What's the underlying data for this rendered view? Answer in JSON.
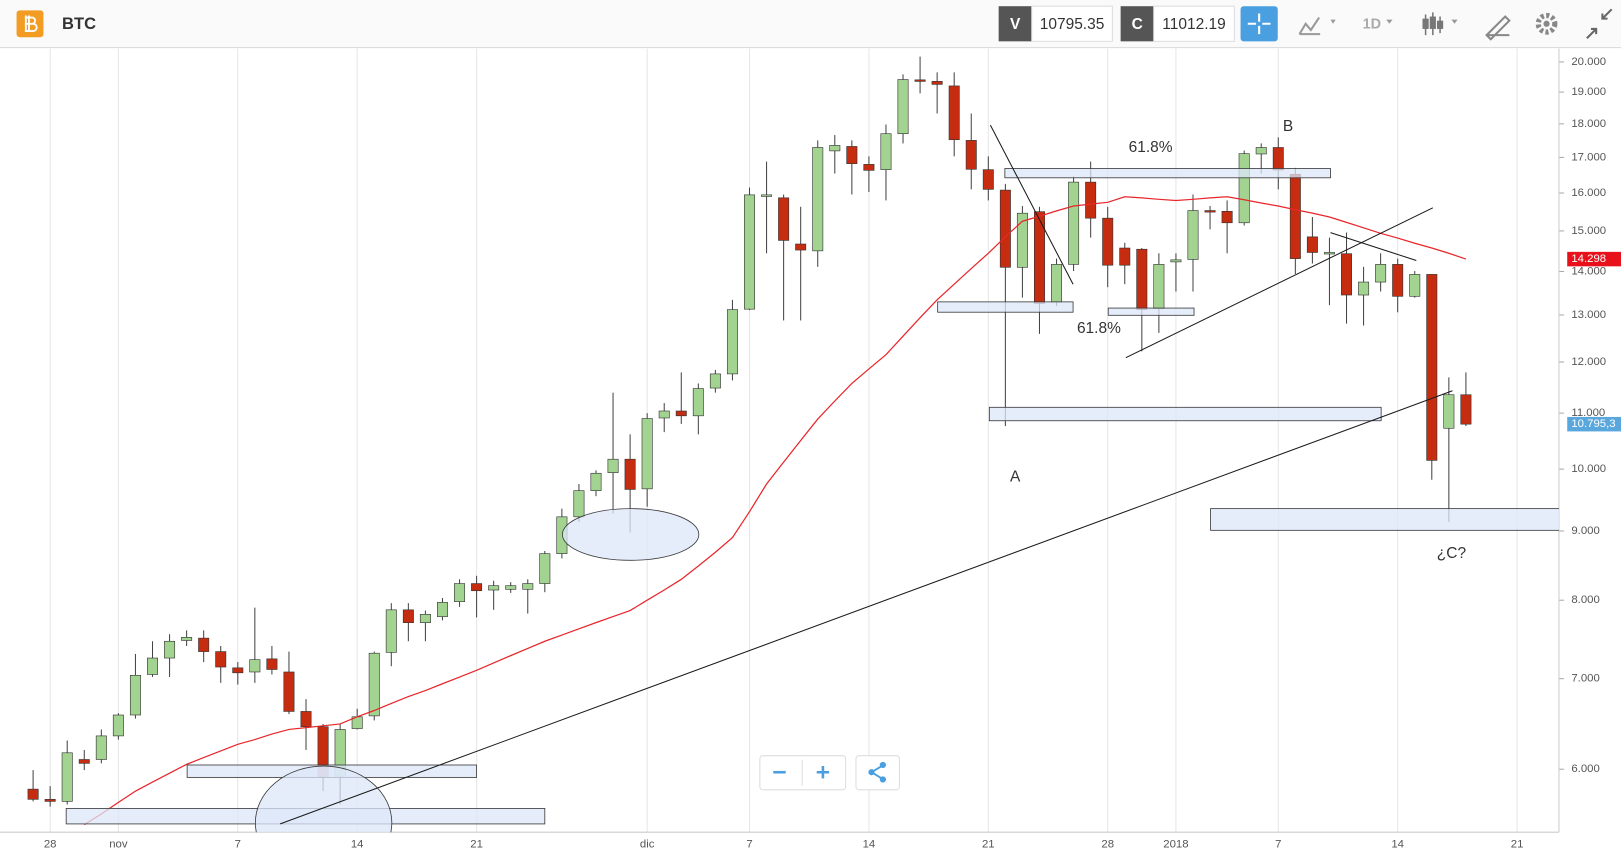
{
  "header": {
    "symbol": "BTC",
    "v_label": "V",
    "v_value": "10795.35",
    "c_label": "C",
    "c_value": "11012.19",
    "interval": "1D"
  },
  "chart_data": {
    "type": "candlestick",
    "categories": [
      null,
      "28",
      null,
      null,
      null,
      "nov",
      null,
      null,
      null,
      null,
      null,
      null,
      "7",
      null,
      null,
      null,
      null,
      null,
      null,
      "14",
      null,
      null,
      null,
      null,
      null,
      null,
      "21",
      null,
      null,
      null,
      null,
      null,
      null,
      null,
      null,
      null,
      "dic",
      null,
      null,
      null,
      null,
      null,
      "7",
      null,
      null,
      null,
      null,
      null,
      null,
      "14",
      null,
      null,
      null,
      null,
      null,
      null,
      "21",
      null,
      null,
      null,
      null,
      null,
      null,
      "28",
      null,
      null,
      null,
      "2018",
      null,
      null,
      null,
      null,
      null,
      "7",
      null,
      null,
      null,
      null,
      null,
      null,
      "14",
      null,
      null,
      null,
      null,
      null,
      null,
      "21"
    ],
    "open": [
      5800,
      5700,
      5680,
      6100,
      6100,
      6350,
      6580,
      7050,
      7250,
      7470,
      7500,
      7330,
      7130,
      7080,
      7240,
      7080,
      6620,
      6450,
      5930,
      6430,
      6570,
      7320,
      7870,
      7700,
      7780,
      7980,
      8230,
      8140,
      8150,
      8150,
      8230,
      8660,
      9220,
      9640,
      9940,
      10170,
      9670,
      10910,
      11040,
      10950,
      11480,
      11760,
      13130,
      15920,
      15870,
      14670,
      14500,
      17190,
      17320,
      16800,
      16650,
      17700,
      19400,
      19350,
      19200,
      17500,
      16650,
      16080,
      14100,
      15500,
      13290,
      14170,
      16300,
      15330,
      14570,
      14540,
      13140,
      14230,
      14290,
      15530,
      15510,
      15210,
      17100,
      17290,
      16520,
      14850,
      14430,
      14430,
      13450,
      13750,
      14170,
      13420,
      13930,
      10720,
      11350,
      null,
      null,
      null
    ],
    "high": [
      5990,
      5830,
      6300,
      6200,
      6420,
      6600,
      7300,
      7460,
      7550,
      7600,
      7600,
      7400,
      7200,
      7900,
      7400,
      7330,
      6760,
      6480,
      6480,
      6650,
      7330,
      7960,
      7960,
      7860,
      8030,
      8290,
      8340,
      8270,
      8250,
      8290,
      8700,
      9350,
      9750,
      9980,
      11390,
      10610,
      11000,
      11190,
      11790,
      11570,
      11840,
      13340,
      16150,
      16880,
      15960,
      15630,
      17500,
      17660,
      17500,
      17030,
      17980,
      19580,
      20180,
      19650,
      19650,
      18320,
      17030,
      16250,
      15650,
      15630,
      14310,
      16460,
      16880,
      15630,
      14700,
      14570,
      14440,
      14440,
      15960,
      15650,
      15800,
      17200,
      17410,
      17590,
      16700,
      15360,
      14830,
      14960,
      14110,
      14440,
      14310,
      14010,
      13940,
      11690,
      11790,
      null,
      null,
      null
    ],
    "low": [
      5680,
      5630,
      5650,
      5990,
      6060,
      6310,
      6540,
      7020,
      7020,
      7400,
      7200,
      6950,
      6930,
      6950,
      7050,
      6590,
      6200,
      5780,
      5650,
      6420,
      6520,
      7150,
      7460,
      7460,
      7730,
      7910,
      7770,
      7870,
      8100,
      7820,
      8110,
      8590,
      9140,
      9550,
      9270,
      8980,
      9380,
      10650,
      10800,
      10610,
      11390,
      11630,
      13110,
      14440,
      12880,
      12880,
      14110,
      16540,
      15960,
      16030,
      15800,
      17410,
      18960,
      18320,
      17030,
      16100,
      15800,
      10760,
      13390,
      12590,
      13200,
      14010,
      14830,
      13630,
      13700,
      12220,
      12610,
      13530,
      13530,
      15040,
      14440,
      15140,
      16540,
      16100,
      13940,
      14190,
      13220,
      12810,
      12770,
      13530,
      13060,
      13390,
      9820,
      9140,
      10760,
      null,
      null,
      null
    ],
    "close": [
      5700,
      5680,
      6170,
      6060,
      6350,
      6580,
      7040,
      7250,
      7460,
      7510,
      7330,
      7140,
      7070,
      7230,
      7110,
      6620,
      6450,
      5920,
      6420,
      6560,
      7310,
      7870,
      7700,
      7810,
      7970,
      8230,
      8130,
      8200,
      8200,
      8230,
      8660,
      9220,
      9640,
      9930,
      10170,
      9660,
      10900,
      11040,
      10950,
      11470,
      11760,
      13120,
      15950,
      15950,
      14760,
      14520,
      17290,
      17350,
      16820,
      16630,
      17700,
      19410,
      19370,
      19250,
      17520,
      16660,
      16100,
      14100,
      15460,
      13260,
      14170,
      16300,
      15330,
      14150,
      14150,
      13120,
      14170,
      14280,
      15530,
      15500,
      15210,
      17110,
      17290,
      16640,
      14310,
      14460,
      14460,
      13450,
      13750,
      14170,
      13420,
      13930,
      10150,
      11350,
      10795.35,
      null,
      null,
      null
    ],
    "up_color": "#a3d391",
    "down_color": "#c62d10",
    "moving_average": {
      "color": "#e8262a",
      "values": [
        null,
        null,
        null,
        5460,
        5560,
        5670,
        5780,
        5870,
        5960,
        6050,
        6120,
        6190,
        6260,
        6310,
        6370,
        6420,
        6440,
        6460,
        6480,
        6560,
        6630,
        6710,
        6790,
        6860,
        6940,
        7020,
        7100,
        7190,
        7280,
        7370,
        7460,
        7540,
        7620,
        7700,
        7780,
        7860,
        8000,
        8140,
        8290,
        8480,
        8680,
        8900,
        9300,
        9750,
        10120,
        10500,
        10890,
        11230,
        11570,
        11860,
        12150,
        12540,
        12940,
        13340,
        13700,
        14070,
        14440,
        14850,
        15250,
        15380,
        15520,
        15650,
        15700,
        15750,
        15900,
        15870,
        15830,
        15800,
        15830,
        15870,
        15900,
        15820,
        15730,
        15650,
        15550,
        15460,
        15360,
        15220,
        15080,
        14940,
        14820,
        14690,
        14570,
        14440,
        14298,
        null,
        null,
        null
      ]
    },
    "log_scale": true,
    "ylim": [
      5390,
      20460
    ],
    "yticks": [
      {
        "value": 6000,
        "label": "6.000"
      },
      {
        "value": 7000,
        "label": "7.000"
      },
      {
        "value": 8000,
        "label": "8.000"
      },
      {
        "value": 9000,
        "label": "9.000"
      },
      {
        "value": 10000,
        "label": "10.000"
      },
      {
        "value": 11000,
        "label": "11.000"
      },
      {
        "value": 12000,
        "label": "12.000"
      },
      {
        "value": 13000,
        "label": "13.000"
      },
      {
        "value": 14000,
        "label": "14.000"
      },
      {
        "value": 15000,
        "label": "15.000"
      },
      {
        "value": 16000,
        "label": "16.000"
      },
      {
        "value": 17000,
        "label": "17.000"
      },
      {
        "value": 18000,
        "label": "18.000"
      },
      {
        "value": 19000,
        "label": "19.000"
      },
      {
        "value": 20000,
        "label": "20.000"
      }
    ],
    "grid": "x",
    "price_labels": [
      {
        "value": 14298,
        "label": "14.298",
        "color": "#e8101a"
      },
      {
        "value": 10795.3,
        "label": "10.795,3",
        "color": "#5aa7dd"
      }
    ],
    "annotations": [
      "61.8%",
      "61.8%",
      "A",
      "B",
      "¿C?"
    ]
  }
}
